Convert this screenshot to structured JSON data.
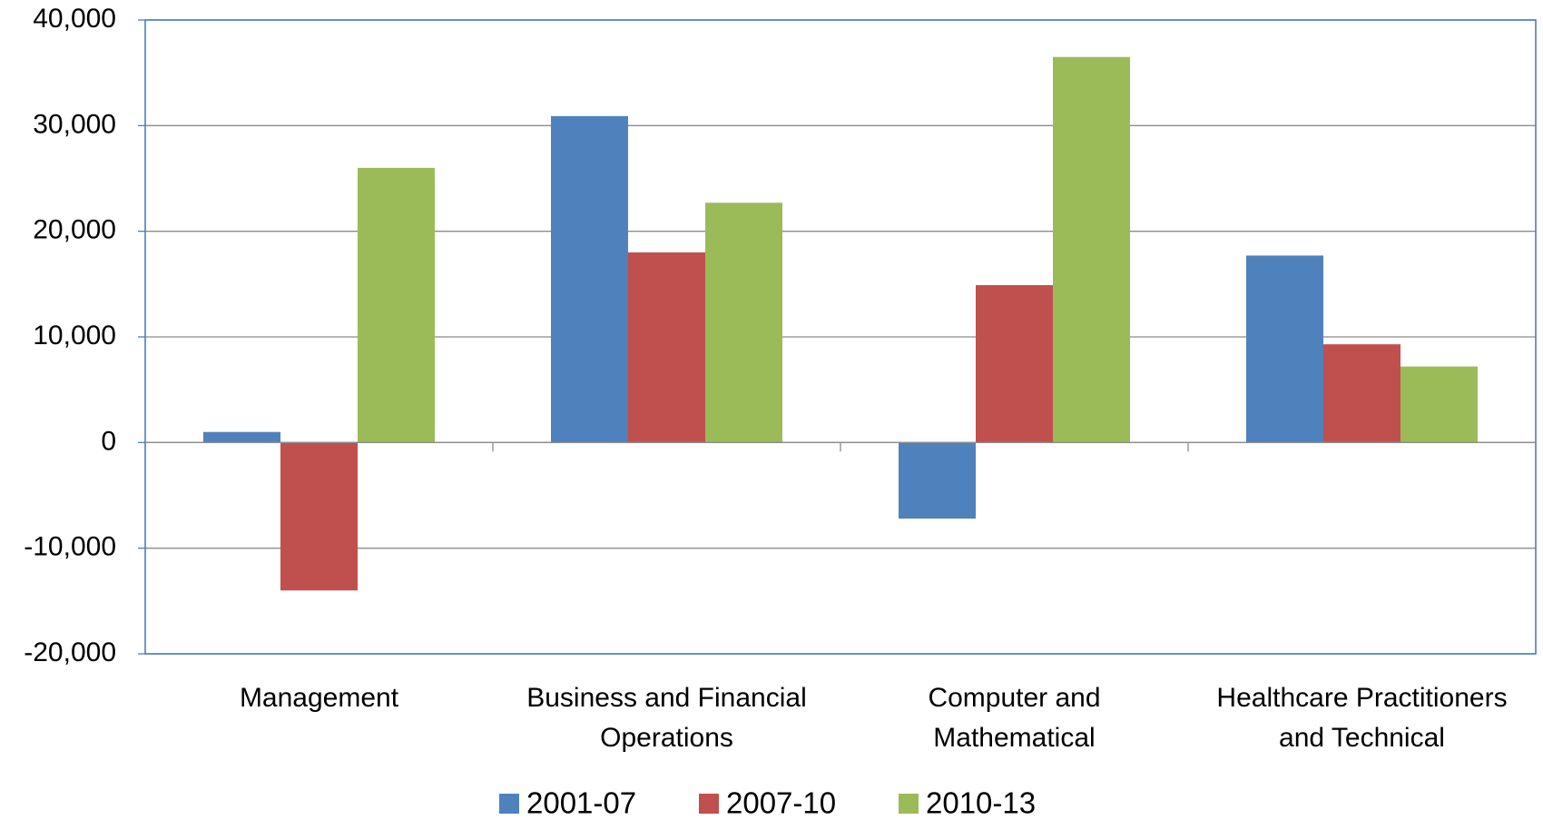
{
  "chart_data": {
    "type": "bar",
    "categories": [
      "Management",
      "Business and Financial Operations",
      "Computer and Mathematical",
      "Healthcare Practitioners and Technical"
    ],
    "series": [
      {
        "name": "2001-07",
        "color": "#4f81bd",
        "values": [
          1000,
          30900,
          -7200,
          17700
        ]
      },
      {
        "name": "2007-10",
        "color": "#c0504d",
        "values": [
          -14000,
          18000,
          14900,
          9300
        ]
      },
      {
        "name": "2010-13",
        "color": "#9bbb59",
        "values": [
          26000,
          22700,
          36500,
          7200
        ]
      }
    ],
    "ylim": [
      -20000,
      40000
    ],
    "yticks": [
      {
        "value": -20000,
        "label": "-20,000"
      },
      {
        "value": -10000,
        "label": "-10,000"
      },
      0,
      {
        "value": 10000,
        "label": "10,000"
      },
      {
        "value": 20000,
        "label": "20,000"
      },
      {
        "value": 30000,
        "label": "30,000"
      },
      {
        "value": 40000,
        "label": "40,000"
      }
    ],
    "grid": true,
    "legend": "bottom"
  }
}
